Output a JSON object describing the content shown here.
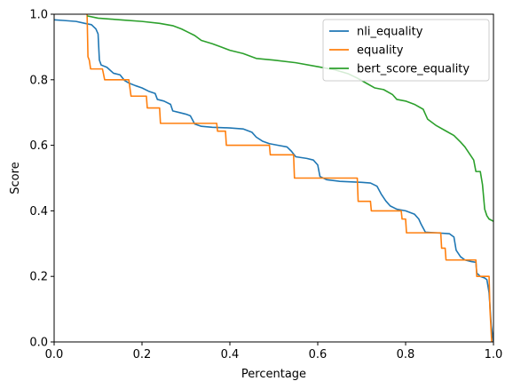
{
  "chart_data": {
    "type": "line",
    "xlabel": "Percentage",
    "ylabel": "Score",
    "xlim": [
      0,
      1
    ],
    "ylim": [
      0,
      1
    ],
    "xticks": [
      "0.0",
      "0.2",
      "0.4",
      "0.6",
      "0.8",
      "1.0"
    ],
    "yticks": [
      "0.0",
      "0.2",
      "0.4",
      "0.6",
      "0.8",
      "1.0"
    ],
    "grid": false,
    "legend_position": "top-right",
    "series": [
      {
        "name": "nli_equality",
        "color": "#1f77b4",
        "points": [
          [
            0.0,
            0.983
          ],
          [
            0.02,
            0.981
          ],
          [
            0.05,
            0.978
          ],
          [
            0.07,
            0.972
          ],
          [
            0.085,
            0.968
          ],
          [
            0.095,
            0.955
          ],
          [
            0.1,
            0.94
          ],
          [
            0.103,
            0.86
          ],
          [
            0.107,
            0.845
          ],
          [
            0.12,
            0.838
          ],
          [
            0.135,
            0.82
          ],
          [
            0.15,
            0.815
          ],
          [
            0.16,
            0.798
          ],
          [
            0.17,
            0.79
          ],
          [
            0.185,
            0.782
          ],
          [
            0.2,
            0.775
          ],
          [
            0.215,
            0.765
          ],
          [
            0.23,
            0.758
          ],
          [
            0.235,
            0.74
          ],
          [
            0.25,
            0.735
          ],
          [
            0.265,
            0.725
          ],
          [
            0.27,
            0.705
          ],
          [
            0.285,
            0.7
          ],
          [
            0.3,
            0.695
          ],
          [
            0.31,
            0.69
          ],
          [
            0.32,
            0.665
          ],
          [
            0.335,
            0.658
          ],
          [
            0.36,
            0.655
          ],
          [
            0.4,
            0.653
          ],
          [
            0.43,
            0.65
          ],
          [
            0.45,
            0.64
          ],
          [
            0.46,
            0.625
          ],
          [
            0.475,
            0.612
          ],
          [
            0.49,
            0.605
          ],
          [
            0.51,
            0.6
          ],
          [
            0.53,
            0.595
          ],
          [
            0.54,
            0.582
          ],
          [
            0.55,
            0.565
          ],
          [
            0.575,
            0.56
          ],
          [
            0.59,
            0.555
          ],
          [
            0.6,
            0.54
          ],
          [
            0.605,
            0.505
          ],
          [
            0.62,
            0.495
          ],
          [
            0.65,
            0.49
          ],
          [
            0.7,
            0.487
          ],
          [
            0.72,
            0.485
          ],
          [
            0.735,
            0.475
          ],
          [
            0.745,
            0.45
          ],
          [
            0.755,
            0.43
          ],
          [
            0.765,
            0.415
          ],
          [
            0.78,
            0.405
          ],
          [
            0.8,
            0.4
          ],
          [
            0.81,
            0.395
          ],
          [
            0.82,
            0.39
          ],
          [
            0.83,
            0.375
          ],
          [
            0.835,
            0.36
          ],
          [
            0.845,
            0.335
          ],
          [
            0.87,
            0.333
          ],
          [
            0.9,
            0.33
          ],
          [
            0.91,
            0.32
          ],
          [
            0.915,
            0.28
          ],
          [
            0.925,
            0.26
          ],
          [
            0.935,
            0.25
          ],
          [
            0.95,
            0.245
          ],
          [
            0.96,
            0.243
          ],
          [
            0.962,
            0.21
          ],
          [
            0.97,
            0.2
          ],
          [
            0.98,
            0.195
          ],
          [
            0.985,
            0.19
          ],
          [
            0.99,
            0.15
          ],
          [
            0.995,
            0.05
          ],
          [
            1.0,
            0.0
          ]
        ]
      },
      {
        "name": "equality",
        "color": "#ff7f0e",
        "points": [
          [
            0.075,
            1.0
          ],
          [
            0.077,
            0.87
          ],
          [
            0.08,
            0.86
          ],
          [
            0.083,
            0.833
          ],
          [
            0.11,
            0.833
          ],
          [
            0.115,
            0.8
          ],
          [
            0.17,
            0.8
          ],
          [
            0.175,
            0.75
          ],
          [
            0.21,
            0.75
          ],
          [
            0.212,
            0.714
          ],
          [
            0.24,
            0.714
          ],
          [
            0.242,
            0.667
          ],
          [
            0.37,
            0.667
          ],
          [
            0.372,
            0.643
          ],
          [
            0.39,
            0.643
          ],
          [
            0.392,
            0.6
          ],
          [
            0.49,
            0.6
          ],
          [
            0.492,
            0.571
          ],
          [
            0.545,
            0.571
          ],
          [
            0.547,
            0.5
          ],
          [
            0.69,
            0.5
          ],
          [
            0.692,
            0.429
          ],
          [
            0.72,
            0.429
          ],
          [
            0.722,
            0.4
          ],
          [
            0.79,
            0.4
          ],
          [
            0.792,
            0.375
          ],
          [
            0.8,
            0.375
          ],
          [
            0.802,
            0.333
          ],
          [
            0.88,
            0.333
          ],
          [
            0.882,
            0.286
          ],
          [
            0.89,
            0.286
          ],
          [
            0.892,
            0.25
          ],
          [
            0.96,
            0.25
          ],
          [
            0.962,
            0.2
          ],
          [
            0.99,
            0.2
          ],
          [
            0.992,
            0.1
          ],
          [
            0.996,
            0.0
          ]
        ]
      },
      {
        "name": "bert_score_equality",
        "color": "#2ca02c",
        "points": [
          [
            0.075,
            0.995
          ],
          [
            0.1,
            0.988
          ],
          [
            0.13,
            0.985
          ],
          [
            0.16,
            0.982
          ],
          [
            0.2,
            0.978
          ],
          [
            0.24,
            0.972
          ],
          [
            0.27,
            0.965
          ],
          [
            0.29,
            0.955
          ],
          [
            0.305,
            0.945
          ],
          [
            0.32,
            0.935
          ],
          [
            0.335,
            0.92
          ],
          [
            0.36,
            0.91
          ],
          [
            0.38,
            0.9
          ],
          [
            0.4,
            0.89
          ],
          [
            0.43,
            0.88
          ],
          [
            0.46,
            0.865
          ],
          [
            0.5,
            0.86
          ],
          [
            0.55,
            0.852
          ],
          [
            0.6,
            0.84
          ],
          [
            0.64,
            0.83
          ],
          [
            0.67,
            0.818
          ],
          [
            0.69,
            0.805
          ],
          [
            0.71,
            0.79
          ],
          [
            0.73,
            0.775
          ],
          [
            0.75,
            0.77
          ],
          [
            0.77,
            0.755
          ],
          [
            0.78,
            0.74
          ],
          [
            0.8,
            0.735
          ],
          [
            0.82,
            0.725
          ],
          [
            0.84,
            0.71
          ],
          [
            0.85,
            0.68
          ],
          [
            0.87,
            0.66
          ],
          [
            0.89,
            0.645
          ],
          [
            0.91,
            0.63
          ],
          [
            0.925,
            0.61
          ],
          [
            0.935,
            0.595
          ],
          [
            0.945,
            0.575
          ],
          [
            0.955,
            0.555
          ],
          [
            0.96,
            0.52
          ],
          [
            0.97,
            0.52
          ],
          [
            0.975,
            0.48
          ],
          [
            0.98,
            0.405
          ],
          [
            0.985,
            0.385
          ],
          [
            0.99,
            0.375
          ],
          [
            1.0,
            0.368
          ]
        ]
      }
    ]
  }
}
